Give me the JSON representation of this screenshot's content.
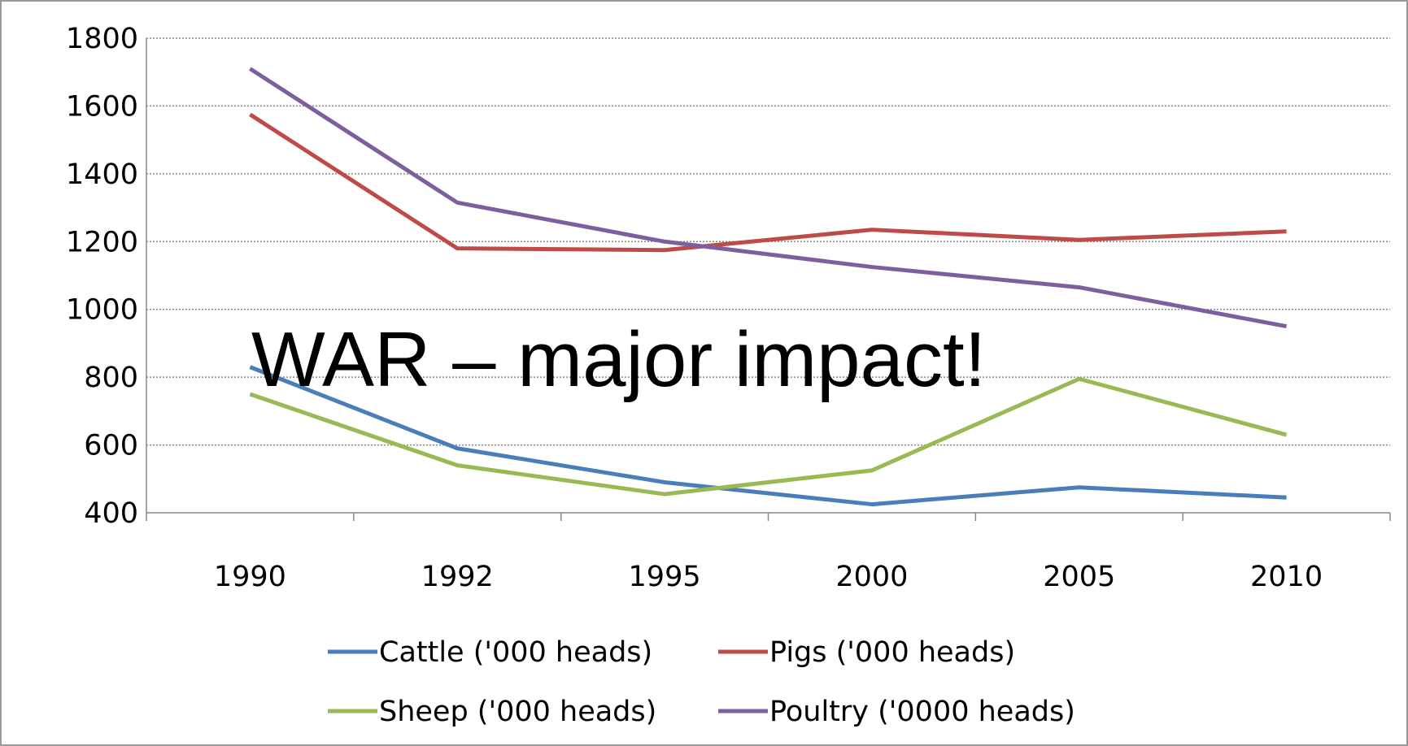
{
  "chart_data": {
    "type": "line",
    "categories": [
      "1990",
      "1992",
      "1995",
      "2000",
      "2005",
      "2010"
    ],
    "series": [
      {
        "name": "Cattle ('000 heads)",
        "color": "#4a7ebb",
        "values": [
          830,
          590,
          490,
          425,
          475,
          445
        ]
      },
      {
        "name": "Pigs ('000 heads)",
        "color": "#be4b48",
        "values": [
          1575,
          1180,
          1175,
          1235,
          1205,
          1230
        ]
      },
      {
        "name": "Sheep ('000 heads)",
        "color": "#98b954",
        "values": [
          750,
          540,
          455,
          525,
          795,
          630
        ]
      },
      {
        "name": "Poultry ('0000 heads)",
        "color": "#7d5fa0",
        "values": [
          1710,
          1315,
          1200,
          1125,
          1065,
          950
        ]
      }
    ],
    "annotation": "WAR – major impact!",
    "ylim": [
      400,
      1800
    ],
    "yticks": [
      400,
      600,
      800,
      1000,
      1200,
      1400,
      1600,
      1800
    ],
    "grid": true,
    "legend": "bottom"
  }
}
